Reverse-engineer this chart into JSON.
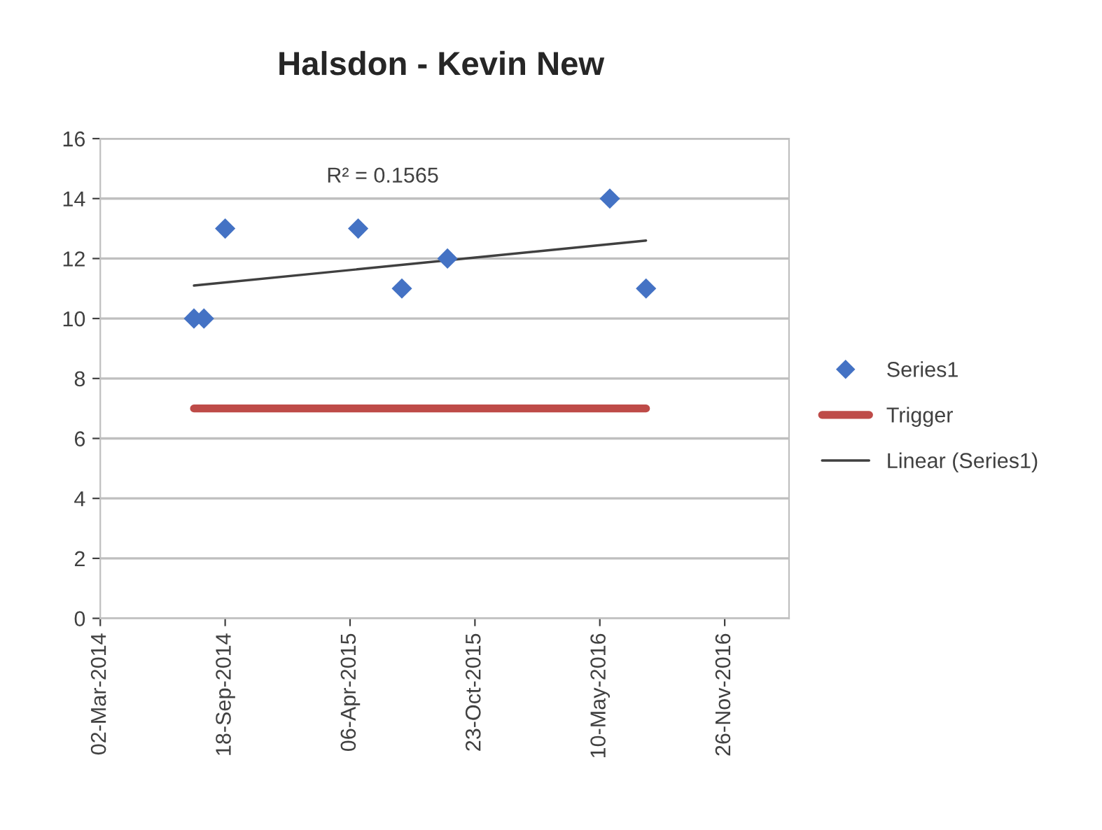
{
  "chart_data": {
    "type": "scatter",
    "title": "Halsdon - Kevin New",
    "series": [
      {
        "name": "Series1",
        "color": "#4472c4",
        "marker": "diamond",
        "x": [
          "2014-07-30",
          "2014-08-15",
          "2014-09-18",
          "2015-04-19",
          "2015-06-28",
          "2015-09-09",
          "2016-05-26",
          "2016-07-23"
        ],
        "values": [
          10,
          10,
          13,
          13,
          11,
          12,
          14,
          11
        ]
      },
      {
        "name": "Trigger",
        "type": "line",
        "color": "#be4b48",
        "x": [
          "2014-07-30",
          "2016-07-23"
        ],
        "values": [
          7,
          7
        ]
      },
      {
        "name": "Linear (Series1)",
        "type": "line",
        "color": "#404040",
        "x": [
          "2014-07-30",
          "2016-07-23"
        ],
        "values": [
          11.1,
          12.6
        ]
      }
    ],
    "annotations": [
      "R² = 0.1565"
    ],
    "xlim": [
      "2014-03-02",
      "2017-03-09"
    ],
    "xticks": [
      {
        "value": "2014-03-02",
        "label": "02-Mar-2014"
      },
      {
        "value": "2014-09-18",
        "label": "18-Sep-2014"
      },
      {
        "value": "2015-04-06",
        "label": "06-Apr-2015"
      },
      {
        "value": "2015-10-23",
        "label": "23-Oct-2015"
      },
      {
        "value": "2016-05-10",
        "label": "10-May-2016"
      },
      {
        "value": "2016-11-26",
        "label": "26-Nov-2016"
      }
    ],
    "ylim": [
      0,
      16
    ],
    "yticks": [
      0,
      2,
      4,
      6,
      8,
      10,
      12,
      14,
      16
    ],
    "grid": "y",
    "legend": "right"
  }
}
